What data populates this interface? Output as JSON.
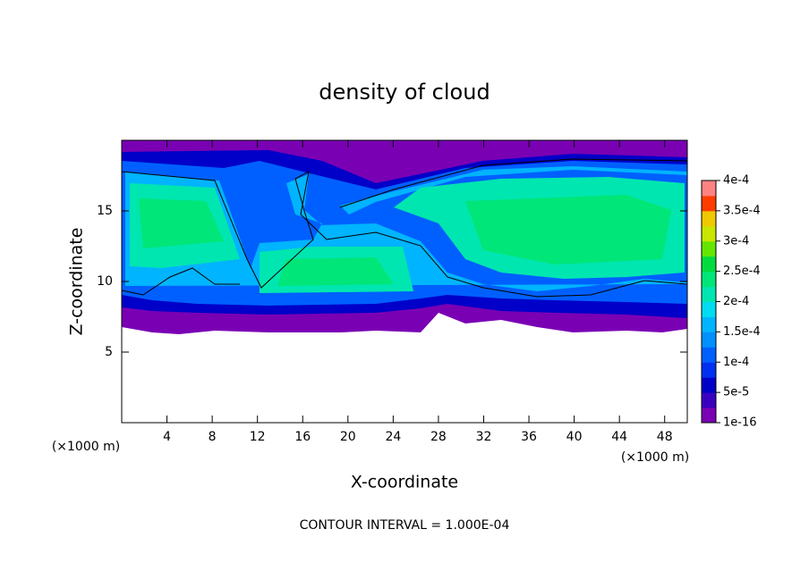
{
  "chart_data": {
    "type": "contour",
    "title": "density of cloud",
    "x_label": "X-coordinate",
    "y_label": "Z-coordinate",
    "x_unit_left": "(×1000 m)",
    "x_unit_right": "(×1000 m)",
    "note": "CONTOUR INTERVAL = 1.000E-04",
    "xlim": [
      0,
      50
    ],
    "xticks": [
      4,
      8,
      12,
      16,
      20,
      24,
      28,
      32,
      36,
      40,
      44,
      48
    ],
    "ylim": [
      0,
      20
    ],
    "yticks": [
      5,
      10,
      15
    ],
    "colorbar": {
      "lim": [
        1e-16,
        0.0004
      ],
      "ticks": [
        {
          "value": 1e-16,
          "label": "1e-16"
        },
        {
          "value": 5e-05,
          "label": "5e-5"
        },
        {
          "value": 0.0001,
          "label": "1e-4"
        },
        {
          "value": 0.00015,
          "label": "1.5e-4"
        },
        {
          "value": 0.0002,
          "label": "2e-4"
        },
        {
          "value": 0.00025,
          "label": "2.5e-4"
        },
        {
          "value": 0.0003,
          "label": "3e-4"
        },
        {
          "value": 0.00035,
          "label": "3.5e-4"
        },
        {
          "value": 0.0004,
          "label": "4e-4"
        }
      ],
      "colors": [
        "#7a00b4",
        "#3a00c0",
        "#0000c8",
        "#0030f0",
        "#0060ff",
        "#0090ff",
        "#00b4ff",
        "#00dcf0",
        "#00e6b0",
        "#00e678",
        "#00dc40",
        "#64e600",
        "#c8e600",
        "#f0c800",
        "#ff3c00",
        "#ff8282"
      ]
    }
  }
}
